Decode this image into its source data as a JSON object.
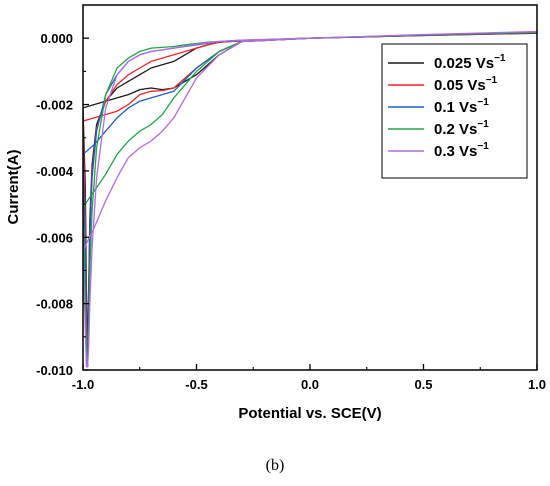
{
  "caption": "(b)",
  "chart_data": {
    "type": "line",
    "xlabel": "Potential vs. SCE(V)",
    "ylabel": "Current(A)",
    "xlim": [
      -1.0,
      1.0
    ],
    "ylim": [
      -0.01,
      0.001
    ],
    "x_ticks": [
      -1.0,
      -0.5,
      0.0,
      0.5,
      1.0
    ],
    "x_tick_labels": [
      "-1.0",
      "-0.5",
      "0.0",
      "0.5",
      "1.0"
    ],
    "y_ticks": [
      0.0,
      -0.002,
      -0.004,
      -0.006,
      -0.008,
      -0.01
    ],
    "y_tick_labels": [
      "0.000",
      "-0.002",
      "-0.004",
      "-0.006",
      "-0.008",
      "-0.010"
    ],
    "grid": false,
    "legend_position": "top-right",
    "series": [
      {
        "name": "0.025 Vs",
        "unit_exponent": "−1",
        "color": "#1a1a1a",
        "x": [
          -1.0,
          -0.99,
          -0.985,
          -0.98,
          -0.975,
          -0.97,
          -0.96,
          -0.94,
          -0.9,
          -0.85,
          -0.8,
          -0.75,
          -0.7,
          -0.6,
          -0.55,
          -0.5,
          -0.45,
          -0.4,
          -0.35,
          -0.3,
          -0.2,
          0.0,
          0.5,
          1.0,
          0.5,
          0.0,
          -0.3,
          -0.4,
          -0.5,
          -0.6,
          -0.65,
          -0.7,
          -0.75,
          -0.8,
          -0.85,
          -0.9,
          -0.95,
          -1.0
        ],
        "y": [
          -0.0021,
          -0.0045,
          -0.0075,
          -0.0099,
          -0.0075,
          -0.0055,
          -0.0038,
          -0.0026,
          -0.0019,
          -0.0015,
          -0.0013,
          -0.0011,
          -0.0009,
          -0.0007,
          -0.0005,
          -0.0003,
          -0.0002,
          -0.00012,
          -0.0001,
          -8e-05,
          -5e-05,
          0.0,
          8e-05,
          0.00015,
          8e-05,
          0.0,
          -0.0001,
          -0.0005,
          -0.0011,
          -0.0015,
          -0.00155,
          -0.0015,
          -0.00155,
          -0.0017,
          -0.0018,
          -0.0019,
          -0.002,
          -0.0021
        ]
      },
      {
        "name": "0.05 Vs",
        "unit_exponent": "−1",
        "color": "#e8262a",
        "x": [
          -1.0,
          -0.99,
          -0.985,
          -0.98,
          -0.975,
          -0.97,
          -0.96,
          -0.94,
          -0.9,
          -0.85,
          -0.8,
          -0.75,
          -0.7,
          -0.6,
          -0.55,
          -0.5,
          -0.45,
          -0.4,
          -0.35,
          -0.3,
          -0.2,
          0.0,
          0.5,
          1.0,
          0.5,
          0.0,
          -0.3,
          -0.4,
          -0.5,
          -0.6,
          -0.65,
          -0.7,
          -0.75,
          -0.8,
          -0.85,
          -0.9,
          -0.95,
          -1.0
        ],
        "y": [
          -0.0025,
          -0.0055,
          -0.0085,
          -0.0099,
          -0.0078,
          -0.0058,
          -0.004,
          -0.0027,
          -0.0019,
          -0.0014,
          -0.0011,
          -0.0009,
          -0.0007,
          -0.0005,
          -0.0004,
          -0.0003,
          -0.0002,
          -0.00012,
          -0.0001,
          -8e-05,
          -5e-05,
          0.0,
          8e-05,
          0.00016,
          8e-05,
          0.0,
          -0.0001,
          -0.0004,
          -0.0009,
          -0.0015,
          -0.00158,
          -0.0016,
          -0.0017,
          -0.002,
          -0.0022,
          -0.0023,
          -0.0024,
          -0.0025
        ]
      },
      {
        "name": "0.1 Vs",
        "unit_exponent": "−1",
        "color": "#1f5fbf",
        "x": [
          -1.0,
          -0.99,
          -0.985,
          -0.98,
          -0.975,
          -0.97,
          -0.96,
          -0.94,
          -0.9,
          -0.85,
          -0.8,
          -0.75,
          -0.7,
          -0.6,
          -0.55,
          -0.5,
          -0.45,
          -0.4,
          -0.35,
          -0.3,
          -0.2,
          0.0,
          0.5,
          1.0,
          0.5,
          0.0,
          -0.3,
          -0.4,
          -0.5,
          -0.6,
          -0.65,
          -0.7,
          -0.75,
          -0.8,
          -0.85,
          -0.9,
          -0.95,
          -1.0
        ],
        "y": [
          -0.0035,
          -0.0065,
          -0.0092,
          -0.0099,
          -0.008,
          -0.006,
          -0.0042,
          -0.0028,
          -0.0017,
          -0.0011,
          -0.0007,
          -0.0005,
          -0.0004,
          -0.0003,
          -0.00025,
          -0.0002,
          -0.00015,
          -0.0001,
          -9e-05,
          -7e-05,
          -5e-05,
          0.0,
          9e-05,
          0.00017,
          9e-05,
          0.0,
          -0.0001,
          -0.0004,
          -0.0009,
          -0.0016,
          -0.0017,
          -0.0018,
          -0.0019,
          -0.0021,
          -0.0024,
          -0.0028,
          -0.0032,
          -0.0035
        ]
      },
      {
        "name": "0.2 Vs",
        "unit_exponent": "−1",
        "color": "#24a34a",
        "x": [
          -1.0,
          -0.99,
          -0.985,
          -0.98,
          -0.975,
          -0.97,
          -0.96,
          -0.94,
          -0.9,
          -0.85,
          -0.8,
          -0.75,
          -0.7,
          -0.6,
          -0.55,
          -0.5,
          -0.45,
          -0.4,
          -0.35,
          -0.3,
          -0.2,
          0.0,
          0.5,
          1.0,
          0.5,
          0.0,
          -0.3,
          -0.4,
          -0.5,
          -0.6,
          -0.65,
          -0.7,
          -0.75,
          -0.8,
          -0.85,
          -0.9,
          -0.95,
          -1.0
        ],
        "y": [
          -0.0051,
          -0.0078,
          -0.0095,
          -0.0099,
          -0.0088,
          -0.007,
          -0.0052,
          -0.0033,
          -0.0017,
          -0.0009,
          -0.0006,
          -0.0004,
          -0.0003,
          -0.00025,
          -0.0002,
          -0.00016,
          -0.00012,
          -0.0001,
          -8e-05,
          -6e-05,
          -4e-05,
          0.0,
          0.0001,
          0.00018,
          0.0001,
          0.0,
          -0.0001,
          -0.0004,
          -0.001,
          -0.0018,
          -0.0023,
          -0.0026,
          -0.0028,
          -0.0031,
          -0.0035,
          -0.0041,
          -0.0046,
          -0.0051
        ]
      },
      {
        "name": "0.3 Vs",
        "unit_exponent": "−1",
        "color": "#b36be0",
        "x": [
          -1.0,
          -0.99,
          -0.985,
          -0.98,
          -0.975,
          -0.97,
          -0.96,
          -0.94,
          -0.9,
          -0.85,
          -0.8,
          -0.75,
          -0.7,
          -0.6,
          -0.55,
          -0.5,
          -0.45,
          -0.4,
          -0.35,
          -0.3,
          -0.2,
          0.0,
          0.5,
          1.0,
          0.5,
          0.0,
          -0.3,
          -0.4,
          -0.5,
          -0.6,
          -0.65,
          -0.7,
          -0.75,
          -0.8,
          -0.85,
          -0.9,
          -0.95,
          -1.0
        ],
        "y": [
          -0.0064,
          -0.0088,
          -0.0099,
          -0.0099,
          -0.0093,
          -0.008,
          -0.0063,
          -0.0042,
          -0.0021,
          -0.0011,
          -0.0007,
          -0.0005,
          -0.0004,
          -0.0003,
          -0.00024,
          -0.00018,
          -0.00014,
          -0.0001,
          -8e-05,
          -6e-05,
          -4e-05,
          0.0,
          0.00011,
          0.0002,
          0.00011,
          0.0,
          -0.0001,
          -0.0005,
          -0.0012,
          -0.0024,
          -0.0028,
          -0.0031,
          -0.0033,
          -0.0036,
          -0.0042,
          -0.0049,
          -0.0057,
          -0.0064
        ]
      }
    ]
  }
}
